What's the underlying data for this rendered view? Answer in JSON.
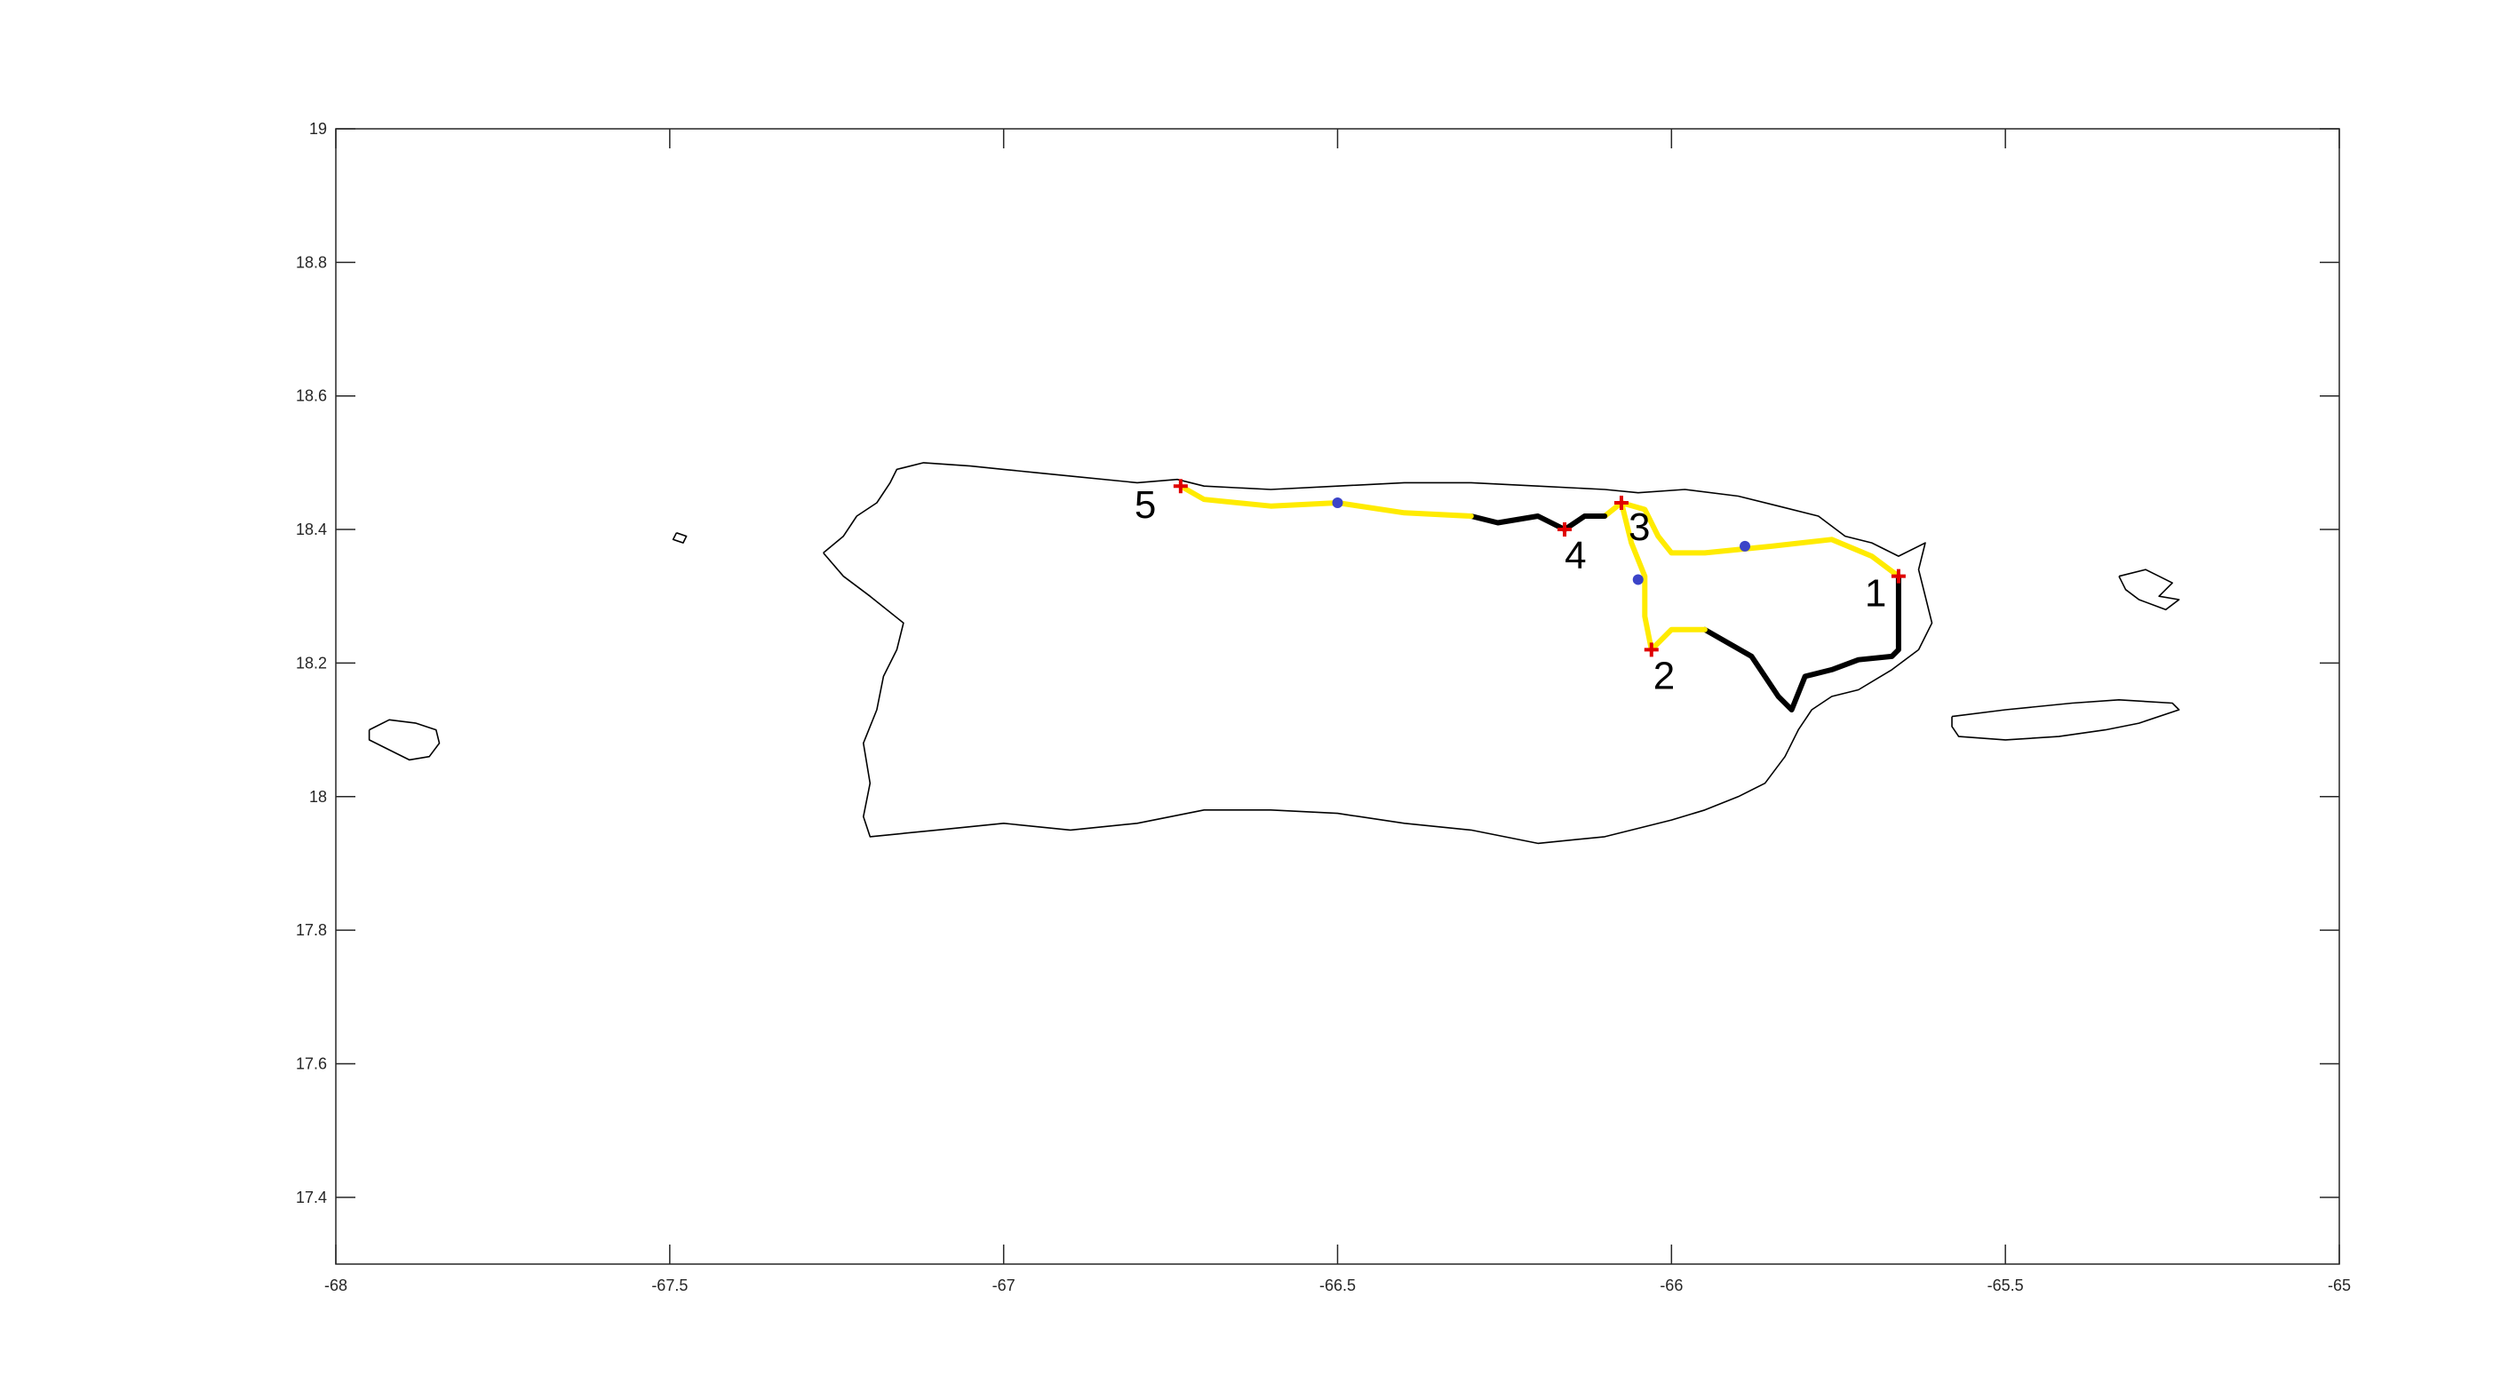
{
  "chart_data": {
    "type": "map-plot",
    "title": "",
    "xlabel": "",
    "ylabel": "",
    "xlim": [
      -68,
      -65
    ],
    "ylim": [
      17.3,
      19
    ],
    "grid": false,
    "x_ticks": [
      {
        "value": -68,
        "label": "-68"
      },
      {
        "value": -67.5,
        "label": "-67.5"
      },
      {
        "value": -67,
        "label": "-67"
      },
      {
        "value": -66.5,
        "label": "-66.5"
      },
      {
        "value": -66,
        "label": "-66"
      },
      {
        "value": -65.5,
        "label": "-65.5"
      },
      {
        "value": -65,
        "label": "-65"
      }
    ],
    "y_ticks": [
      {
        "value": 17.4,
        "label": "17.4"
      },
      {
        "value": 17.6,
        "label": "17.6"
      },
      {
        "value": 17.8,
        "label": "17.8"
      },
      {
        "value": 18,
        "label": "18"
      },
      {
        "value": 18.2,
        "label": "18.2"
      },
      {
        "value": 18.4,
        "label": "18.4"
      },
      {
        "value": 18.6,
        "label": "18.6"
      },
      {
        "value": 18.8,
        "label": "18.8"
      },
      {
        "value": 19,
        "label": "19"
      }
    ],
    "coastlines": [
      {
        "name": "puerto-rico",
        "points": [
          [
            -67.27,
            18.365
          ],
          [
            -67.24,
            18.39
          ],
          [
            -67.22,
            18.42
          ],
          [
            -67.19,
            18.44
          ],
          [
            -67.17,
            18.47
          ],
          [
            -67.16,
            18.49
          ],
          [
            -67.12,
            18.5
          ],
          [
            -67.05,
            18.495
          ],
          [
            -67.0,
            18.49
          ],
          [
            -66.95,
            18.485
          ],
          [
            -66.9,
            18.48
          ],
          [
            -66.8,
            18.47
          ],
          [
            -66.74,
            18.475
          ],
          [
            -66.7,
            18.465
          ],
          [
            -66.6,
            18.46
          ],
          [
            -66.5,
            18.465
          ],
          [
            -66.4,
            18.47
          ],
          [
            -66.3,
            18.47
          ],
          [
            -66.2,
            18.465
          ],
          [
            -66.1,
            18.46
          ],
          [
            -66.05,
            18.455
          ],
          [
            -65.98,
            18.46
          ],
          [
            -65.9,
            18.45
          ],
          [
            -65.84,
            18.435
          ],
          [
            -65.78,
            18.42
          ],
          [
            -65.74,
            18.39
          ],
          [
            -65.7,
            18.38
          ],
          [
            -65.66,
            18.36
          ],
          [
            -65.62,
            18.38
          ],
          [
            -65.63,
            18.34
          ],
          [
            -65.62,
            18.3
          ],
          [
            -65.61,
            18.26
          ],
          [
            -65.63,
            18.22
          ],
          [
            -65.67,
            18.19
          ],
          [
            -65.72,
            18.16
          ],
          [
            -65.76,
            18.15
          ],
          [
            -65.79,
            18.13
          ],
          [
            -65.81,
            18.1
          ],
          [
            -65.83,
            18.06
          ],
          [
            -65.86,
            18.02
          ],
          [
            -65.9,
            18.0
          ],
          [
            -65.95,
            17.98
          ],
          [
            -66.0,
            17.965
          ],
          [
            -66.1,
            17.94
          ],
          [
            -66.2,
            17.93
          ],
          [
            -66.3,
            17.95
          ],
          [
            -66.4,
            17.96
          ],
          [
            -66.5,
            17.975
          ],
          [
            -66.6,
            17.98
          ],
          [
            -66.7,
            17.98
          ],
          [
            -66.8,
            17.96
          ],
          [
            -66.9,
            17.95
          ],
          [
            -67.0,
            17.96
          ],
          [
            -67.1,
            17.95
          ],
          [
            -67.2,
            17.94
          ],
          [
            -67.21,
            17.97
          ],
          [
            -67.2,
            18.02
          ],
          [
            -67.21,
            18.08
          ],
          [
            -67.19,
            18.13
          ],
          [
            -67.18,
            18.18
          ],
          [
            -67.16,
            18.22
          ],
          [
            -67.15,
            18.26
          ],
          [
            -67.2,
            18.3
          ],
          [
            -67.24,
            18.33
          ],
          [
            -67.27,
            18.365
          ]
        ]
      },
      {
        "name": "mona-island",
        "points": [
          [
            -67.95,
            18.1
          ],
          [
            -67.92,
            18.115
          ],
          [
            -67.88,
            18.11
          ],
          [
            -67.85,
            18.1
          ],
          [
            -67.845,
            18.08
          ],
          [
            -67.86,
            18.06
          ],
          [
            -67.89,
            18.055
          ],
          [
            -67.92,
            18.07
          ],
          [
            -67.95,
            18.085
          ],
          [
            -67.95,
            18.1
          ]
        ]
      },
      {
        "name": "desecheo-island",
        "points": [
          [
            -67.49,
            18.395
          ],
          [
            -67.475,
            18.39
          ],
          [
            -67.48,
            18.38
          ],
          [
            -67.495,
            18.385
          ],
          [
            -67.49,
            18.395
          ]
        ]
      },
      {
        "name": "vieques",
        "points": [
          [
            -65.58,
            18.12
          ],
          [
            -65.5,
            18.13
          ],
          [
            -65.4,
            18.14
          ],
          [
            -65.33,
            18.145
          ],
          [
            -65.25,
            18.14
          ],
          [
            -65.24,
            18.13
          ],
          [
            -65.3,
            18.11
          ],
          [
            -65.35,
            18.1
          ],
          [
            -65.42,
            18.09
          ],
          [
            -65.5,
            18.085
          ],
          [
            -65.57,
            18.09
          ],
          [
            -65.58,
            18.105
          ],
          [
            -65.58,
            18.12
          ]
        ]
      },
      {
        "name": "culebra",
        "points": [
          [
            -65.33,
            18.33
          ],
          [
            -65.29,
            18.34
          ],
          [
            -65.27,
            18.33
          ],
          [
            -65.25,
            18.32
          ],
          [
            -65.27,
            18.3
          ],
          [
            -65.24,
            18.295
          ],
          [
            -65.26,
            18.28
          ],
          [
            -65.3,
            18.295
          ],
          [
            -65.32,
            18.31
          ],
          [
            -65.33,
            18.33
          ]
        ]
      }
    ],
    "routes": [
      {
        "color": "#000000",
        "points": [
          [
            -65.66,
            18.33
          ],
          [
            -65.66,
            18.22
          ],
          [
            -65.67,
            18.21
          ],
          [
            -65.72,
            18.205
          ],
          [
            -65.76,
            18.19
          ],
          [
            -65.8,
            18.18
          ],
          [
            -65.82,
            18.13
          ],
          [
            -65.84,
            18.15
          ],
          [
            -65.88,
            18.21
          ],
          [
            -65.95,
            18.25
          ]
        ]
      },
      {
        "color": "#FFEB00",
        "points": [
          [
            -65.95,
            18.25
          ],
          [
            -66.0,
            18.25
          ],
          [
            -66.03,
            18.22
          ],
          [
            -66.04,
            18.27
          ],
          [
            -66.04,
            18.33
          ],
          [
            -66.06,
            18.38
          ],
          [
            -66.075,
            18.44
          ]
        ]
      },
      {
        "color": "#FFEB00",
        "points": [
          [
            -66.075,
            18.44
          ],
          [
            -66.04,
            18.43
          ],
          [
            -66.02,
            18.39
          ],
          [
            -66.0,
            18.365
          ],
          [
            -65.95,
            18.365
          ],
          [
            -65.85,
            18.375
          ],
          [
            -65.76,
            18.385
          ],
          [
            -65.7,
            18.36
          ],
          [
            -65.66,
            18.33
          ]
        ]
      },
      {
        "color": "#FFEB00",
        "points": [
          [
            -66.075,
            18.44
          ],
          [
            -66.1,
            18.42
          ]
        ]
      },
      {
        "color": "#000000",
        "points": [
          [
            -66.1,
            18.42
          ],
          [
            -66.13,
            18.42
          ],
          [
            -66.16,
            18.4
          ],
          [
            -66.2,
            18.42
          ],
          [
            -66.26,
            18.41
          ],
          [
            -66.3,
            18.42
          ]
        ]
      },
      {
        "color": "#FFEB00",
        "points": [
          [
            -66.3,
            18.42
          ],
          [
            -66.4,
            18.425
          ],
          [
            -66.5,
            18.44
          ],
          [
            -66.6,
            18.435
          ],
          [
            -66.7,
            18.445
          ],
          [
            -66.735,
            18.465
          ]
        ]
      }
    ],
    "nodes": [
      {
        "label": "1",
        "x": -65.66,
        "y": 18.33
      },
      {
        "label": "2",
        "x": -66.03,
        "y": 18.22
      },
      {
        "label": "3",
        "x": -66.075,
        "y": 18.44
      },
      {
        "label": "4",
        "x": -66.16,
        "y": 18.4
      },
      {
        "label": "5",
        "x": -66.735,
        "y": 18.465
      }
    ],
    "markers": [
      {
        "x": -66.5,
        "y": 18.44
      },
      {
        "x": -66.05,
        "y": 18.325
      },
      {
        "x": -65.89,
        "y": 18.375
      }
    ],
    "colors": {
      "node_marker": "#E00000",
      "blue_marker": "#3B44C8",
      "axes": "#262626"
    }
  }
}
